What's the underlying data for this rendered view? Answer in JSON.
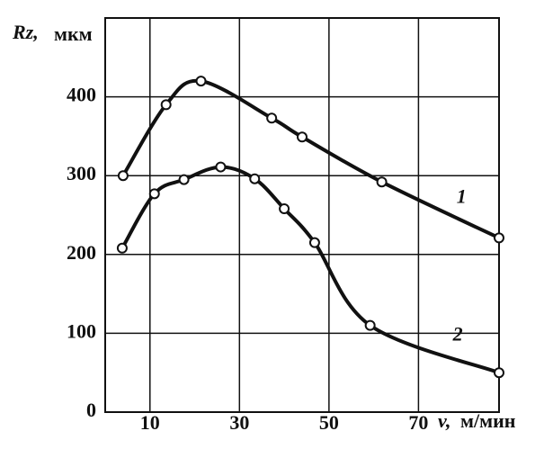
{
  "chart_data": {
    "type": "line",
    "y_label_symbol": "Rz,",
    "y_label_unit": "мкм",
    "x_label_symbol": "v,",
    "x_label_unit": "м/мин",
    "xlim": [
      0,
      88
    ],
    "xticks": [
      10,
      30,
      50,
      70
    ],
    "ylim": [
      0,
      500
    ],
    "yticks": [
      0,
      100,
      200,
      300,
      400
    ],
    "grid": true,
    "series": [
      {
        "name": "1",
        "color": "#111111",
        "x": [
          4,
          13.6,
          21.4,
          37.2,
          44,
          61.8,
          88
        ],
        "values": [
          300,
          390,
          420,
          373,
          349,
          292,
          221
        ]
      },
      {
        "name": "2",
        "color": "#111111",
        "x": [
          3.8,
          11,
          17.6,
          25.8,
          33.4,
          40,
          46.8,
          59.2,
          88
        ],
        "values": [
          208,
          277,
          295,
          311,
          296,
          258,
          215,
          110,
          50
        ]
      }
    ]
  }
}
